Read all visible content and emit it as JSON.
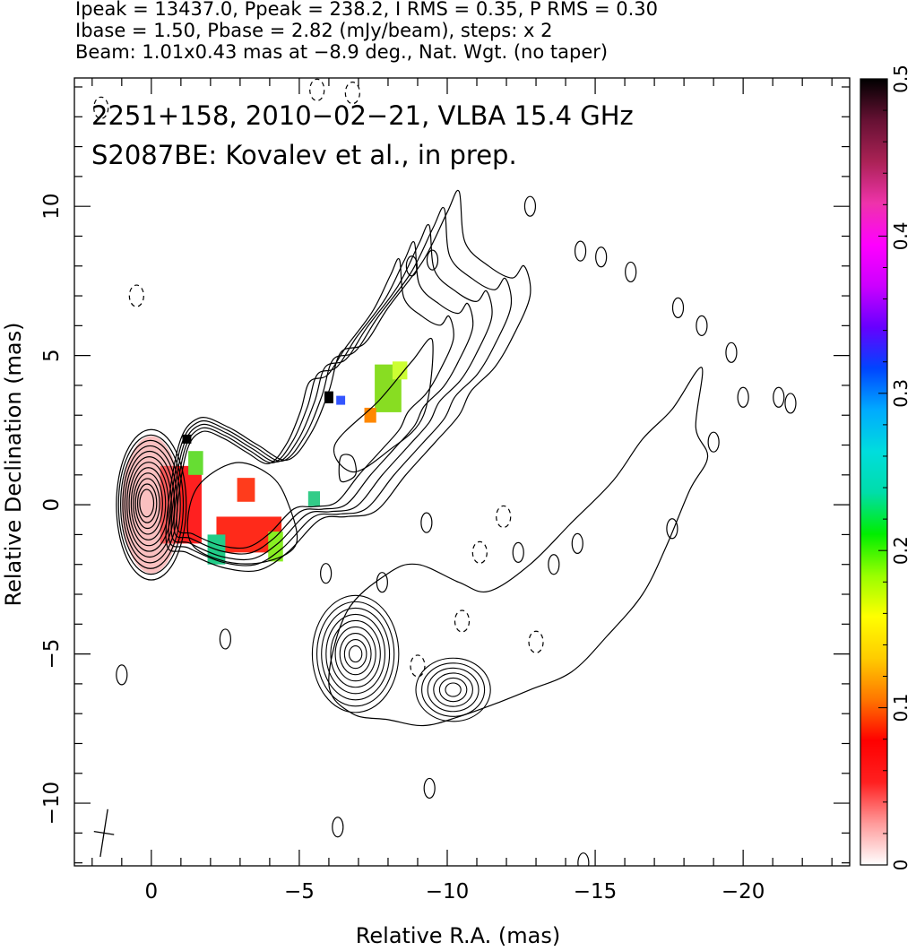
{
  "chart_data": {
    "type": "heatmap",
    "header_lines": [
      "Ipeak = 13437.0, Ppeak = 238.2, I RMS = 0.35, P RMS = 0.30",
      "Ibase = 1.50, Pbase = 2.82 (mJy/beam), steps: x 2",
      "Beam: 1.01x0.43 mas at −8.9 deg., Nat. Wgt. (no taper)"
    ],
    "annotations": [
      "2251+158, 2010−02−21, VLBA 15.4 GHz",
      "S2087BE: Kovalev et al., in prep."
    ],
    "xlabel": "Relative R.A. (mas)",
    "ylabel": "Relative Declination (mas)",
    "xlim": [
      2.6,
      -23.6
    ],
    "ylim": [
      -12.1,
      14.3
    ],
    "x_ticks": [
      0,
      -5,
      -10,
      -15,
      -20
    ],
    "x_tick_labels": [
      "0",
      "−5",
      "−10",
      "−15",
      "−20"
    ],
    "y_ticks": [
      -10,
      -5,
      0,
      5,
      10
    ],
    "y_tick_labels": [
      "−10",
      "−5",
      "0",
      "5",
      "10"
    ],
    "colorbar": {
      "min": 0,
      "max": 0.5,
      "ticks": [
        0,
        0.1,
        0.2,
        0.3,
        0.4,
        0.5
      ],
      "tick_labels": [
        "0",
        "0.1",
        "0.2",
        "0.3",
        "0.4",
        "0.5"
      ],
      "stops": [
        "#ffffff",
        "#ff9a9a",
        "#ff2020",
        "#ff0000",
        "#ff7700",
        "#ffcc00",
        "#ffff00",
        "#99ff00",
        "#00ee00",
        "#00ddaa",
        "#00dddd",
        "#00aaff",
        "#0044ff",
        "#6600ff",
        "#cc00ff",
        "#ff00ff",
        "#ee33aa",
        "#aa2255",
        "#661133",
        "#000000"
      ]
    },
    "core": {
      "x": 0,
      "y": 0
    },
    "beam": {
      "major": 1.01,
      "minor": 0.43,
      "pa_deg": -8.9,
      "center": [
        1.6,
        -11.0
      ]
    },
    "jet_contours_inner": [
      [
        [
          -1.5,
          0.5
        ],
        [
          -2.8,
          1.4
        ],
        [
          -4.0,
          1.0
        ],
        [
          -4.6,
          0.1
        ],
        [
          -4.9,
          -1.3
        ],
        [
          -3.9,
          -1.9
        ],
        [
          -2.5,
          -1.9
        ],
        [
          -1.3,
          -1.2
        ]
      ],
      [
        [
          -6.2,
          2.0
        ],
        [
          -7.7,
          3.5
        ],
        [
          -8.8,
          4.8
        ],
        [
          -9.5,
          5.5
        ],
        [
          -9.2,
          3.0
        ],
        [
          -8.0,
          1.8
        ],
        [
          -6.8,
          1.1
        ]
      ],
      [
        [
          -6.4,
          1.6
        ],
        [
          -6.8,
          1.6
        ],
        [
          -6.9,
          1.0
        ],
        [
          -6.4,
          0.8
        ]
      ]
    ],
    "jet_contour_outer": [
      [
        -0.9,
        1.9
      ],
      [
        -1.6,
        2.9
      ],
      [
        -2.6,
        2.6
      ],
      [
        -3.6,
        2.0
      ],
      [
        -4.6,
        1.5
      ],
      [
        -5.4,
        2.4
      ],
      [
        -6.0,
        3.8
      ],
      [
        -6.4,
        5.1
      ],
      [
        -7.2,
        5.4
      ],
      [
        -8.0,
        6.6
      ],
      [
        -9.2,
        8.2
      ],
      [
        -10.0,
        9.8
      ],
      [
        -10.4,
        10.5
      ],
      [
        -10.6,
        8.8
      ],
      [
        -11.4,
        8.0
      ],
      [
        -12.2,
        7.6
      ],
      [
        -12.6,
        8.0
      ],
      [
        -12.8,
        7.0
      ],
      [
        -12.2,
        5.6
      ],
      [
        -11.6,
        4.6
      ],
      [
        -10.8,
        3.8
      ],
      [
        -10.4,
        3.0
      ],
      [
        -9.6,
        2.1
      ],
      [
        -8.6,
        1.0
      ],
      [
        -7.6,
        -0.2
      ],
      [
        -6.6,
        -0.4
      ],
      [
        -5.7,
        -0.5
      ],
      [
        -4.6,
        -1.6
      ],
      [
        -3.6,
        -2.2
      ],
      [
        -2.4,
        -2.1
      ],
      [
        -1.2,
        -1.6
      ],
      [
        -0.5,
        -1.2
      ]
    ],
    "south_component_contour": [
      [
        -6.0,
        -6.0
      ],
      [
        -6.6,
        -3.6
      ],
      [
        -8.0,
        -2.3
      ],
      [
        -9.0,
        -2.0
      ],
      [
        -10.4,
        -2.6
      ],
      [
        -11.4,
        -2.9
      ],
      [
        -12.8,
        -2.0
      ],
      [
        -14.2,
        -0.6
      ],
      [
        -15.6,
        0.8
      ],
      [
        -16.6,
        2.2
      ],
      [
        -17.6,
        3.2
      ],
      [
        -18.6,
        4.6
      ],
      [
        -18.4,
        2.6
      ],
      [
        -18.8,
        1.6
      ],
      [
        -18.2,
        0.5
      ],
      [
        -17.4,
        -1.4
      ],
      [
        -16.6,
        -3.0
      ],
      [
        -15.4,
        -4.4
      ],
      [
        -14.2,
        -5.6
      ],
      [
        -12.8,
        -6.2
      ],
      [
        -11.8,
        -6.6
      ],
      [
        -10.4,
        -7.1
      ],
      [
        -9.2,
        -7.4
      ],
      [
        -8.0,
        -7.2
      ],
      [
        -6.8,
        -7.0
      ]
    ],
    "south_knot": {
      "x": -6.9,
      "y": -5.0
    },
    "south_knot2": {
      "x": -10.2,
      "y": -6.2
    },
    "isolated_contours": [
      [
        -2.5,
        -4.5
      ],
      [
        1.0,
        -5.7
      ],
      [
        -9.4,
        -9.5
      ],
      [
        -6.3,
        -10.8
      ],
      [
        -8.8,
        8.0
      ],
      [
        -9.5,
        8.2
      ],
      [
        -12.8,
        10.0
      ],
      [
        -14.5,
        8.5
      ],
      [
        -15.2,
        8.3
      ],
      [
        -16.2,
        7.8
      ],
      [
        -17.8,
        6.6
      ],
      [
        -18.6,
        6.0
      ],
      [
        -19.6,
        5.1
      ],
      [
        -20.0,
        3.6
      ],
      [
        -21.2,
        3.6
      ],
      [
        -21.6,
        3.4
      ],
      [
        -19.0,
        2.1
      ],
      [
        -17.6,
        -0.8
      ],
      [
        -14.4,
        -1.3
      ],
      [
        -13.6,
        -2.0
      ],
      [
        -12.4,
        -1.6
      ],
      [
        -5.9,
        -2.3
      ],
      [
        -9.3,
        -0.6
      ],
      [
        -7.8,
        -2.6
      ],
      [
        -14.6,
        -12.0
      ]
    ],
    "dashed_contours": [
      [
        0.5,
        7.0
      ],
      [
        -6.8,
        13.8
      ],
      [
        -5.6,
        13.9
      ],
      [
        1.7,
        13.3
      ],
      [
        -11.9,
        -0.4
      ],
      [
        -11.1,
        -1.6
      ],
      [
        -10.5,
        -3.9
      ],
      [
        -9.0,
        -5.4
      ],
      [
        -13.0,
        -4.6
      ]
    ],
    "pol_patches": [
      {
        "x": -1.0,
        "y": 0.0,
        "w": 1.4,
        "h": 2.6,
        "color": "#ff2020"
      },
      {
        "x": -3.3,
        "y": -1.0,
        "w": 2.2,
        "h": 1.2,
        "color": "#ff2a1a"
      },
      {
        "x": -3.2,
        "y": 0.5,
        "w": 0.6,
        "h": 0.8,
        "color": "#ff3c1c"
      },
      {
        "x": -4.2,
        "y": -1.4,
        "w": 0.5,
        "h": 1.0,
        "color": "#88ee22"
      },
      {
        "x": -2.2,
        "y": -1.5,
        "w": 0.6,
        "h": 1.0,
        "color": "#22cc88"
      },
      {
        "x": -1.5,
        "y": 1.4,
        "w": 0.5,
        "h": 0.8,
        "color": "#66dd33"
      },
      {
        "x": -5.5,
        "y": 0.2,
        "w": 0.4,
        "h": 0.5,
        "color": "#33cc88"
      },
      {
        "x": -8.0,
        "y": 3.9,
        "w": 0.9,
        "h": 1.6,
        "color": "#88dd22"
      },
      {
        "x": -8.4,
        "y": 4.5,
        "w": 0.5,
        "h": 0.6,
        "color": "#ccff33"
      },
      {
        "x": -7.4,
        "y": 3.0,
        "w": 0.4,
        "h": 0.5,
        "color": "#ff8800"
      },
      {
        "x": -6.4,
        "y": 3.5,
        "w": 0.3,
        "h": 0.3,
        "color": "#3355ff"
      },
      {
        "x": -6.0,
        "y": 3.6,
        "w": 0.3,
        "h": 0.4,
        "color": "#000000"
      },
      {
        "x": -1.2,
        "y": 2.2,
        "w": 0.3,
        "h": 0.3,
        "color": "#000000"
      }
    ]
  }
}
